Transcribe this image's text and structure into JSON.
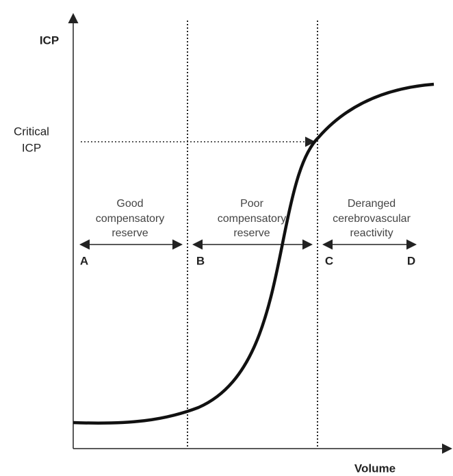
{
  "axes": {
    "y_label": "ICP",
    "x_label": "Volume"
  },
  "critical_icp": [
    "Critical",
    "ICP"
  ],
  "zones": [
    {
      "lines": [
        "Good",
        "compensatory",
        "reserve"
      ]
    },
    {
      "lines": [
        "Poor",
        "compensatory",
        "reserve"
      ]
    },
    {
      "lines": [
        "Deranged",
        "cerebrovascular",
        "reactivity"
      ]
    }
  ],
  "points": [
    "A",
    "B",
    "C",
    "D"
  ]
}
